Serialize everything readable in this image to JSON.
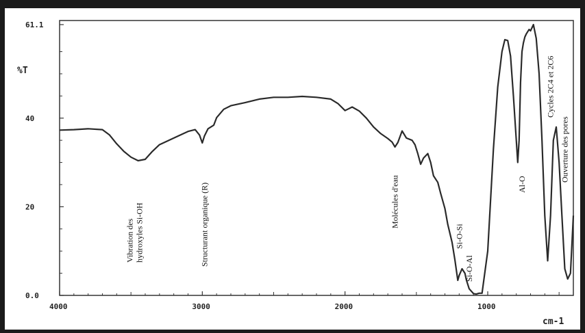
{
  "chart_data": {
    "type": "line",
    "title": "",
    "xlabel": "cm-1",
    "ylabel": "%T",
    "xlim": [
      4000,
      400
    ],
    "ylim": [
      0,
      61.1
    ],
    "x_ticks": [
      4000,
      3000,
      2000,
      1000
    ],
    "x_tick_labels": [
      "4000",
      "3000",
      "2000",
      "1000"
    ],
    "y_ticks": [
      0,
      20,
      40,
      61.1
    ],
    "y_tick_labels": [
      "0.0",
      "20",
      "40",
      "61.1"
    ],
    "grid": false,
    "line_color": "#2a2a2a",
    "series": [
      {
        "x": [
          4000,
          3900,
          3800,
          3700,
          3650,
          3600,
          3550,
          3500,
          3450,
          3400,
          3350,
          3300,
          3200,
          3100,
          3050,
          3020,
          3000,
          2985,
          2960,
          2920,
          2900,
          2850,
          2800,
          2700,
          2600,
          2500,
          2400,
          2300,
          2200,
          2100,
          2050,
          2000,
          1950,
          1900,
          1850,
          1800,
          1750,
          1700,
          1670,
          1650,
          1630,
          1600,
          1570,
          1530,
          1510,
          1490,
          1470,
          1450,
          1420,
          1400,
          1380,
          1350,
          1330,
          1300,
          1280,
          1250,
          1230,
          1210,
          1200,
          1180,
          1160,
          1150,
          1130,
          1100,
          1080,
          1060,
          1040,
          1000,
          960,
          930,
          900,
          880,
          860,
          840,
          820,
          800,
          790,
          780,
          770,
          760,
          750,
          740,
          730,
          710,
          700,
          680,
          660,
          640,
          620,
          600,
          580,
          560,
          540,
          520,
          500,
          480,
          460,
          440,
          420,
          400
        ],
        "y": [
          37.3,
          37.4,
          37.6,
          37.4,
          36.2,
          34.2,
          32.5,
          31.2,
          30.4,
          30.7,
          32.5,
          34.0,
          35.5,
          37.0,
          37.4,
          36.2,
          34.4,
          36.0,
          37.6,
          38.4,
          40.1,
          42.0,
          42.8,
          43.5,
          44.3,
          44.7,
          44.7,
          44.9,
          44.7,
          44.3,
          43.3,
          41.7,
          42.5,
          41.6,
          40.0,
          38.0,
          36.5,
          35.4,
          34.6,
          33.5,
          34.5,
          37.1,
          35.5,
          35.0,
          34.0,
          32.0,
          29.6,
          31.0,
          32.0,
          30.0,
          27.0,
          25.5,
          23.0,
          19.6,
          16.0,
          12.0,
          8.0,
          3.4,
          4.5,
          6.0,
          5.0,
          3.5,
          1.5,
          0.4,
          0.3,
          0.5,
          0.5,
          10.0,
          33.0,
          47.0,
          55.0,
          57.7,
          57.5,
          54.0,
          45.0,
          35.0,
          30.0,
          35.0,
          48.0,
          55.0,
          57.0,
          58.3,
          59.0,
          60.0,
          59.7,
          61.1,
          58.0,
          50.0,
          35.0,
          18.0,
          7.8,
          18.0,
          35.0,
          38.0,
          30.0,
          18.0,
          6.0,
          3.7,
          5.0,
          18.0
        ]
      }
    ],
    "annotations": [
      {
        "lines": [
          "Vibration des",
          "hydroxyles Si-OH"
        ],
        "x": 3450
      },
      {
        "lines": [
          "Structurant organique (R)"
        ],
        "x": 2985
      },
      {
        "lines": [
          "Molécules d'eau"
        ],
        "x": 1650
      },
      {
        "lines": [
          "Si-O-Si"
        ],
        "x": 1200
      },
      {
        "lines": [
          "Si-O-Al"
        ],
        "x": 1130
      },
      {
        "lines": [
          "Al-O"
        ],
        "x": 760
      },
      {
        "lines": [
          "Cycles 2C4 et 2C6"
        ],
        "x": 560
      },
      {
        "lines": [
          "Ouverture des pores"
        ],
        "x": 460
      }
    ]
  }
}
